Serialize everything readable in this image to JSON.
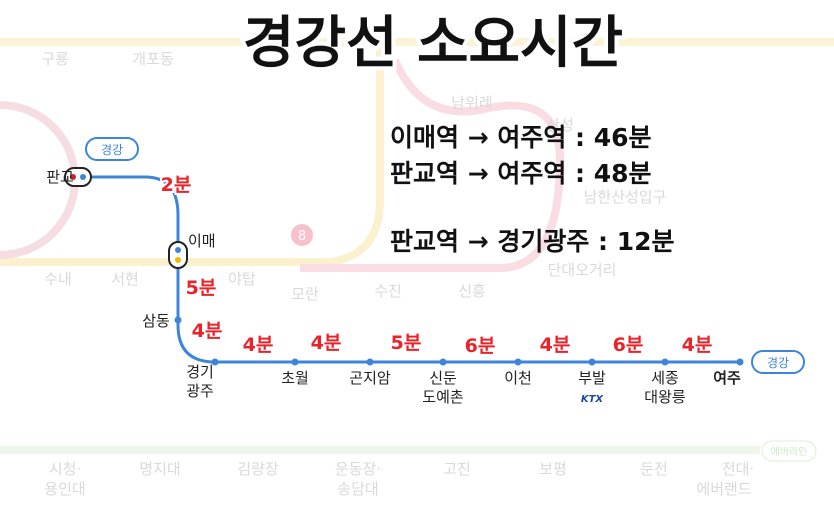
{
  "title": "경강선 소요시간",
  "line_badge": "경강",
  "line_badge_end": "경강",
  "summary": [
    "이매역 → 여주역 : 46분",
    "판교역 → 여주역 : 48분",
    "판교역 → 경기광주 : 12분"
  ],
  "stations": [
    {
      "lines": [
        "판교"
      ]
    },
    {
      "lines": [
        "이매"
      ]
    },
    {
      "lines": [
        "삼동"
      ]
    },
    {
      "lines": [
        "경기",
        "광주"
      ]
    },
    {
      "lines": [
        "초월"
      ]
    },
    {
      "lines": [
        "곤지암"
      ]
    },
    {
      "lines": [
        "신둔",
        "도예촌"
      ]
    },
    {
      "lines": [
        "이천"
      ]
    },
    {
      "lines": [
        "부발"
      ]
    },
    {
      "lines": [
        "세종",
        "대왕릉"
      ]
    },
    {
      "lines": [
        "여주"
      ]
    }
  ],
  "segments": [
    "2분",
    "5분",
    "4분",
    "4분",
    "4분",
    "5분",
    "6분",
    "4분",
    "6분",
    "4분"
  ],
  "ktx": "KTX",
  "background": {
    "labels": [
      "구룡",
      "개포동",
      "남위례",
      "산성",
      "남한산성입구",
      "수내",
      "서현",
      "야탑",
      "모란",
      "수진",
      "신흥",
      "단대오거리",
      "시청·",
      "용인대",
      "명지대",
      "김량장",
      "운동장·",
      "송담대",
      "고진",
      "보평",
      "둔전",
      "전대·",
      "에버랜드"
    ],
    "badge_8": "8",
    "everline": "에버라인"
  }
}
